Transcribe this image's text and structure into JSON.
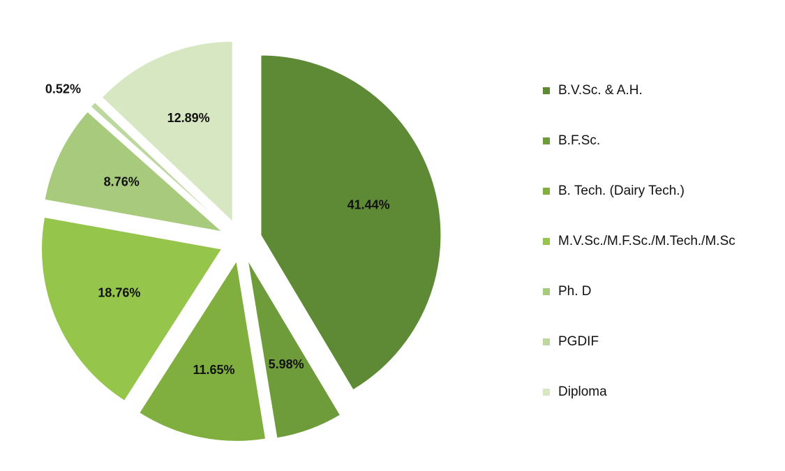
{
  "chart_data": {
    "type": "pie",
    "categories": [
      "B.V.Sc. & A.H.",
      "B.F.Sc.",
      "B. Tech. (Dairy Tech.)",
      "M.V.Sc./M.F.Sc./M.Tech./M.Sc",
      "Ph. D",
      "PGDIF",
      "Diploma"
    ],
    "values": [
      41.44,
      5.98,
      11.65,
      18.76,
      8.76,
      0.52,
      12.89
    ],
    "value_labels": [
      "41.44%",
      "5.98%",
      "11.65%",
      "18.76%",
      "8.76%",
      "0.52%",
      "12.89%"
    ],
    "colors": [
      "#5e8a35",
      "#6e9c3b",
      "#80af3f",
      "#95c54a",
      "#a8ca7c",
      "#bdd89f",
      "#d6e7c2"
    ],
    "legend": "right"
  }
}
